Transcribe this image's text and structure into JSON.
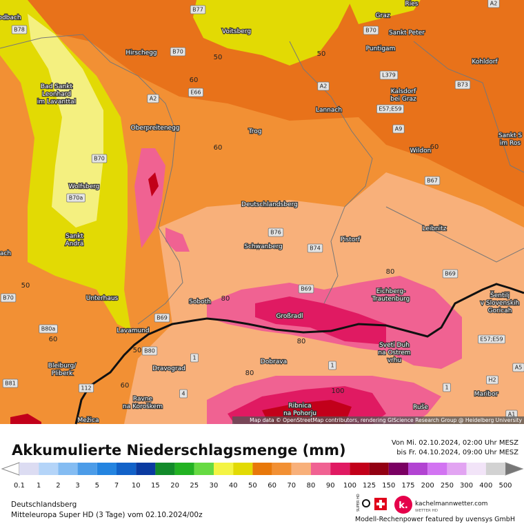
{
  "map": {
    "places": [
      [
        "odbach"
      ],
      [
        "Voitsberg"
      ],
      [
        "Graz"
      ],
      [
        "Ries"
      ],
      [
        "Sankt Peter"
      ],
      [
        "Puntigam"
      ],
      [
        "Hirschegg"
      ],
      [
        "Kohldorf"
      ],
      [
        "Bad Sankt",
        "Leonhard",
        "im Lavanttal"
      ],
      [
        "Lannach"
      ],
      [
        "Kalsdorf",
        "bei Graz"
      ],
      [
        "Oberpreitenegg"
      ],
      [
        "Trog"
      ],
      [
        "Wildon"
      ],
      [
        "Sankt S",
        "im Ros"
      ],
      [
        "Wolfsberg"
      ],
      [
        "Deutschlandsberg"
      ],
      [
        "Leibnitz"
      ],
      [
        "Sankt",
        "Andrä"
      ],
      [
        "ach"
      ],
      [
        "Schwanberg"
      ],
      [
        "Pistorf"
      ],
      [
        "Unterhaus"
      ],
      [
        "Soboth"
      ],
      [
        "Eichberg-",
        "Trautenburg"
      ],
      [
        "Šentilj",
        "v Slovenskih",
        "Goricah"
      ],
      [
        "Großradl"
      ],
      [
        "Lavamund"
      ],
      [
        "Sveti Duh",
        "na Ostrem",
        "vrhu"
      ],
      [
        "Bleiburg/",
        "Pliberk"
      ],
      [
        "Dravograd"
      ],
      [
        "Dobrava"
      ],
      [
        "Ravne",
        "na Koroškem"
      ],
      [
        "Maribor"
      ],
      [
        "Ribnica",
        "na Pohorju"
      ],
      [
        "Ruše"
      ],
      [
        "Mežica"
      ]
    ],
    "roads": [
      "B77",
      "A2",
      "B78",
      "B70",
      "B70",
      "L379",
      "E66",
      "A2",
      "B73",
      "A2",
      "E57;E59",
      "A9",
      "B70",
      "B67",
      "B70a",
      "B76",
      "B74",
      "B69",
      "B70",
      "B69",
      "B69",
      "B80a",
      "B80",
      "1",
      "1",
      "E57;E59",
      "A5",
      "H2",
      "112",
      "4",
      "1",
      "B81",
      "A1"
    ],
    "contours": [
      50,
      50,
      60,
      60,
      60,
      80,
      80,
      80,
      80,
      50,
      60,
      50,
      60,
      100
    ],
    "attribution": "Map data © OpenStreetMap contributors, rendering GIScience Research Group @ Heidelberg University"
  },
  "legend": {
    "title": "Akkumulierte Niederschlagsmenge (mm)",
    "period": [
      "Von Mi. 02.10.2024, 02:00 Uhr MESZ",
      "bis Fr. 04.10.2024, 09:00 Uhr MESZ"
    ],
    "bins": [
      0.1,
      1,
      2,
      3,
      5,
      7,
      10,
      15,
      20,
      25,
      30,
      40,
      50,
      60,
      70,
      80,
      90,
      100,
      125,
      150,
      175,
      200,
      250,
      300,
      400,
      500
    ],
    "colors": [
      "#dcdcf2",
      "#b4d4f8",
      "#84bcf2",
      "#4c9ce8",
      "#2484e0",
      "#1262c8",
      "#0a3aa0",
      "#128a2a",
      "#22b222",
      "#66da42",
      "#f4f444",
      "#e2da04",
      "#e8780a",
      "#f29034",
      "#f8b07a",
      "#f06292",
      "#e01a62",
      "#c2001a",
      "#920012",
      "#7a0062",
      "#b244d2",
      "#d274f2",
      "#e2a4f2",
      "#f2e4f8",
      "#d2d2d2"
    ]
  },
  "footer": {
    "location": "Deutschlandsberg",
    "model": "Mitteleuropa Super HD (3 Tage) vom  02.10.2024/00z",
    "brand": "kachelmannwetter.com",
    "brand_sub": "WETTER HD",
    "badge": "SUPER HD",
    "sponsor": "Modell-Rechenpower featured by uvensys GmbH"
  }
}
